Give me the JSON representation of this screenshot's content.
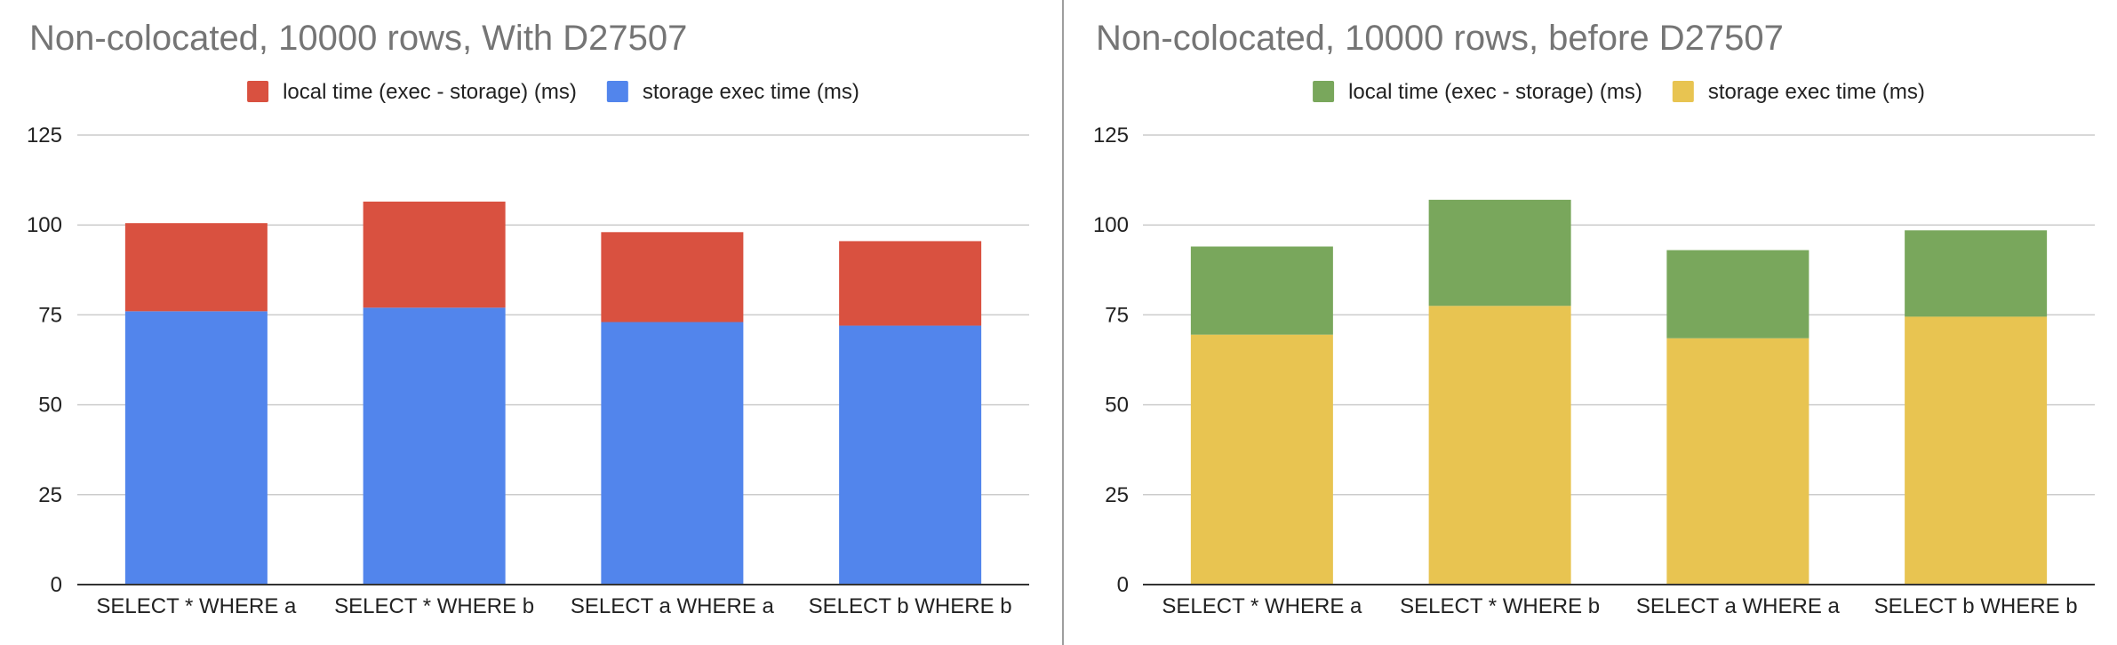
{
  "chart_data": [
    {
      "type": "bar",
      "stacked": true,
      "title": "Non-colocated, 10000 rows, With D27507",
      "xlabel": "",
      "ylabel": "",
      "ylim": [
        0,
        125
      ],
      "yticks": [
        0,
        25,
        50,
        75,
        100,
        125
      ],
      "grid": true,
      "legend_position": "top",
      "categories": [
        "SELECT * WHERE a",
        "SELECT * WHERE b",
        "SELECT a WHERE a",
        "SELECT b WHERE b"
      ],
      "series": [
        {
          "name": "storage exec time (ms)",
          "color": "#5285ec",
          "values": [
            76,
            77,
            73,
            72
          ]
        },
        {
          "name": "local time (exec - storage) (ms)",
          "color": "#d95140",
          "values": [
            24.5,
            29.5,
            25,
            23.5
          ]
        }
      ],
      "legend_order": [
        1,
        0
      ]
    },
    {
      "type": "bar",
      "stacked": true,
      "title": "Non-colocated, 10000 rows, before D27507",
      "xlabel": "",
      "ylabel": "",
      "ylim": [
        0,
        125
      ],
      "yticks": [
        0,
        25,
        50,
        75,
        100,
        125
      ],
      "grid": true,
      "legend_position": "top",
      "categories": [
        "SELECT * WHERE a",
        "SELECT * WHERE b",
        "SELECT a WHERE a",
        "SELECT b WHERE b"
      ],
      "series": [
        {
          "name": "storage exec time (ms)",
          "color": "#e8c451",
          "values": [
            69.5,
            77.5,
            68.5,
            74.5
          ]
        },
        {
          "name": "local time (exec - storage) (ms)",
          "color": "#79a75c",
          "values": [
            24.5,
            29.5,
            24.5,
            24
          ]
        }
      ],
      "legend_order": [
        1,
        0
      ]
    }
  ]
}
